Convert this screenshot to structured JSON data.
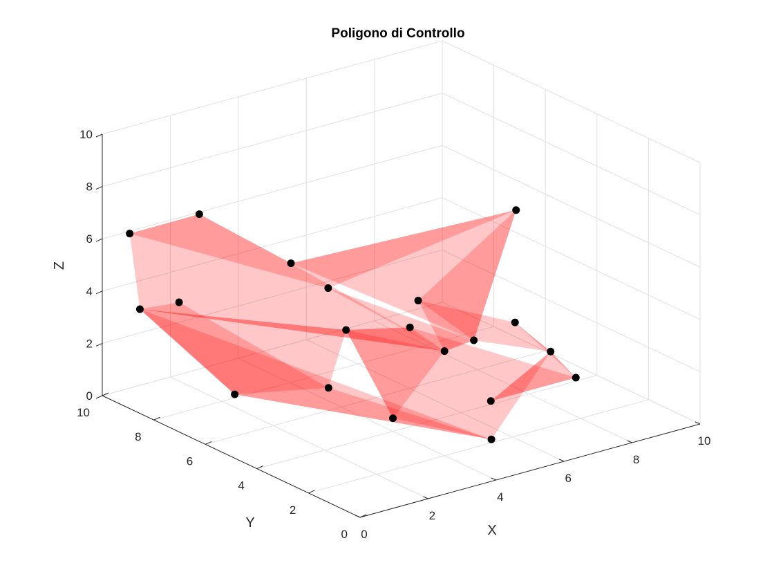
{
  "chart_data": {
    "type": "scatter",
    "subtype": "3d-control-polygon-with-translucent-faces",
    "title": "Poligono di Controllo",
    "xlabel": "X",
    "ylabel": "Y",
    "zlabel": "Z",
    "xlim": [
      0,
      10
    ],
    "ylim": [
      0,
      10
    ],
    "zlim": [
      0,
      10
    ],
    "xticks": [
      "0",
      "2",
      "4",
      "6",
      "8",
      "10"
    ],
    "yticks": [
      "0",
      "2",
      "4",
      "6",
      "8",
      "10"
    ],
    "zticks": [
      "0",
      "2",
      "4",
      "6",
      "8",
      "10"
    ],
    "grid": true,
    "view": "3d-default",
    "face_color": "#ff0000",
    "point_color": "#000000",
    "points": [
      {
        "x": 1.5,
        "y": 9.0,
        "z": 3.5
      },
      {
        "x": 0.2,
        "y": 9.2,
        "z": 6.5
      },
      {
        "x": 0.2,
        "y": 6.5,
        "z": 8.5
      },
      {
        "x": 1.0,
        "y": 4.0,
        "z": 7.5
      },
      {
        "x": 0.2,
        "y": 1.5,
        "z": 8.0
      },
      {
        "x": 4.0,
        "y": 2.0,
        "z": 4.0
      },
      {
        "x": 3.0,
        "y": 4.5,
        "z": 4.0
      },
      {
        "x": 6.0,
        "y": 3.5,
        "z": 3.0
      },
      {
        "x": 8.5,
        "y": 5.2,
        "z": 2.0
      },
      {
        "x": 7.5,
        "y": 2.5,
        "z": 2.5
      },
      {
        "x": 9.0,
        "y": 3.5,
        "z": 0.5
      },
      {
        "x": 5.5,
        "y": 5.0,
        "z": 4.0
      },
      {
        "x": 4.0,
        "y": 6.5,
        "z": 0.5
      },
      {
        "x": 4.0,
        "y": 4.0,
        "z": 0.5
      },
      {
        "x": 6.5,
        "y": 3.5,
        "z": 0.5
      },
      {
        "x": 5.0,
        "y": 1.5,
        "z": 0.5
      },
      {
        "x": 4.5,
        "y": 4.0,
        "z": 3.8
      },
      {
        "x": 8.0,
        "y": 4.5,
        "z": 6.8
      },
      {
        "x": 2.0,
        "y": 7.5,
        "z": 0.5
      },
      {
        "x": 0.5,
        "y": 9.2,
        "z": 3.5
      }
    ],
    "faces": [
      [
        19,
        1,
        2
      ],
      [
        19,
        2,
        5
      ],
      [
        19,
        5,
        6
      ],
      [
        19,
        6,
        12
      ],
      [
        19,
        12,
        18
      ],
      [
        19,
        18,
        15
      ],
      [
        15,
        13,
        12
      ],
      [
        15,
        14,
        13
      ],
      [
        15,
        9,
        14
      ],
      [
        9,
        10,
        14
      ],
      [
        9,
        8,
        10
      ],
      [
        8,
        11,
        9
      ],
      [
        11,
        7,
        9
      ],
      [
        7,
        5,
        11
      ],
      [
        5,
        6,
        13
      ],
      [
        6,
        16,
        13
      ],
      [
        16,
        14,
        13
      ],
      [
        2,
        4,
        3
      ],
      [
        2,
        3,
        5
      ],
      [
        3,
        4,
        17
      ],
      [
        3,
        17,
        7
      ],
      [
        17,
        11,
        7
      ],
      [
        4,
        5,
        7
      ],
      [
        5,
        16,
        6
      ],
      [
        16,
        14,
        10
      ],
      [
        18,
        12,
        13
      ],
      [
        18,
        13,
        15
      ],
      [
        0,
        19,
        18
      ],
      [
        0,
        18,
        12
      ],
      [
        1,
        2,
        4
      ]
    ]
  }
}
